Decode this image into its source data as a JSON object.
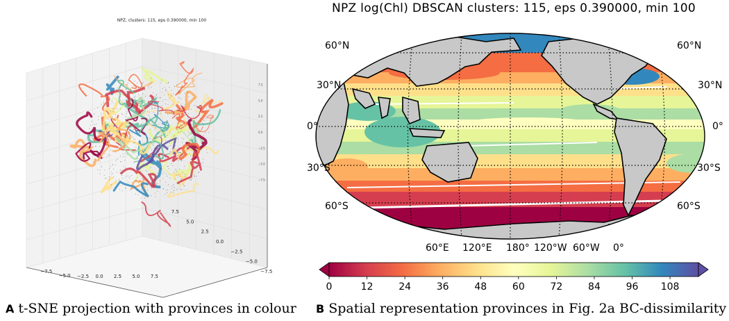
{
  "panel_a": {
    "title": "NPZ, clusters: 115, eps 0.390000, min 100",
    "x_ticks": [
      "−7.5",
      "−5.0",
      "−2.5",
      "0.0",
      "2.5",
      "5.0",
      "7.5"
    ],
    "y_ticks": [
      "7.5",
      "5.0",
      "2.5",
      "0.0",
      "−2.5",
      "−5.0",
      "−7.5"
    ],
    "z_ticks": [
      "7.5",
      "5.0",
      "2.5",
      "0.0",
      "−2.5",
      "−5.0",
      "−7.5"
    ],
    "series_colors": [
      "#9e0142",
      "#d53e4f",
      "#f46d43",
      "#fdae61",
      "#fee08b",
      "#e6f598",
      "#abdda4",
      "#66c2a5",
      "#3288bd",
      "#5e4fa2",
      "#000000"
    ]
  },
  "panel_b": {
    "title": "NPZ log(Chl) DBSCAN clusters: 115, eps 0.390000, min 100",
    "lat_labels": [
      "60°N",
      "30°N",
      "0°",
      "30°S",
      "60°S"
    ],
    "lon_labels": [
      "60°E",
      "120°E",
      "180°",
      "120°W",
      "60°W",
      "0°"
    ],
    "colorbar": {
      "ticks": [
        "0",
        "12",
        "24",
        "36",
        "48",
        "60",
        "72",
        "84",
        "96",
        "108"
      ],
      "colors": [
        "#9e0142",
        "#d53e4f",
        "#f46d43",
        "#fdae61",
        "#fee08b",
        "#ffffbf",
        "#e6f598",
        "#abdda4",
        "#66c2a5",
        "#3288bd",
        "#5e4fa2"
      ],
      "land_color": "#c8c8c8"
    }
  },
  "captions": {
    "a_letter": "A",
    "a_text": "t-SNE projection with provinces in colour",
    "b_letter": "B",
    "b_text": "Spatial representation provinces in Fig. 2a BC-dissimilarity"
  }
}
